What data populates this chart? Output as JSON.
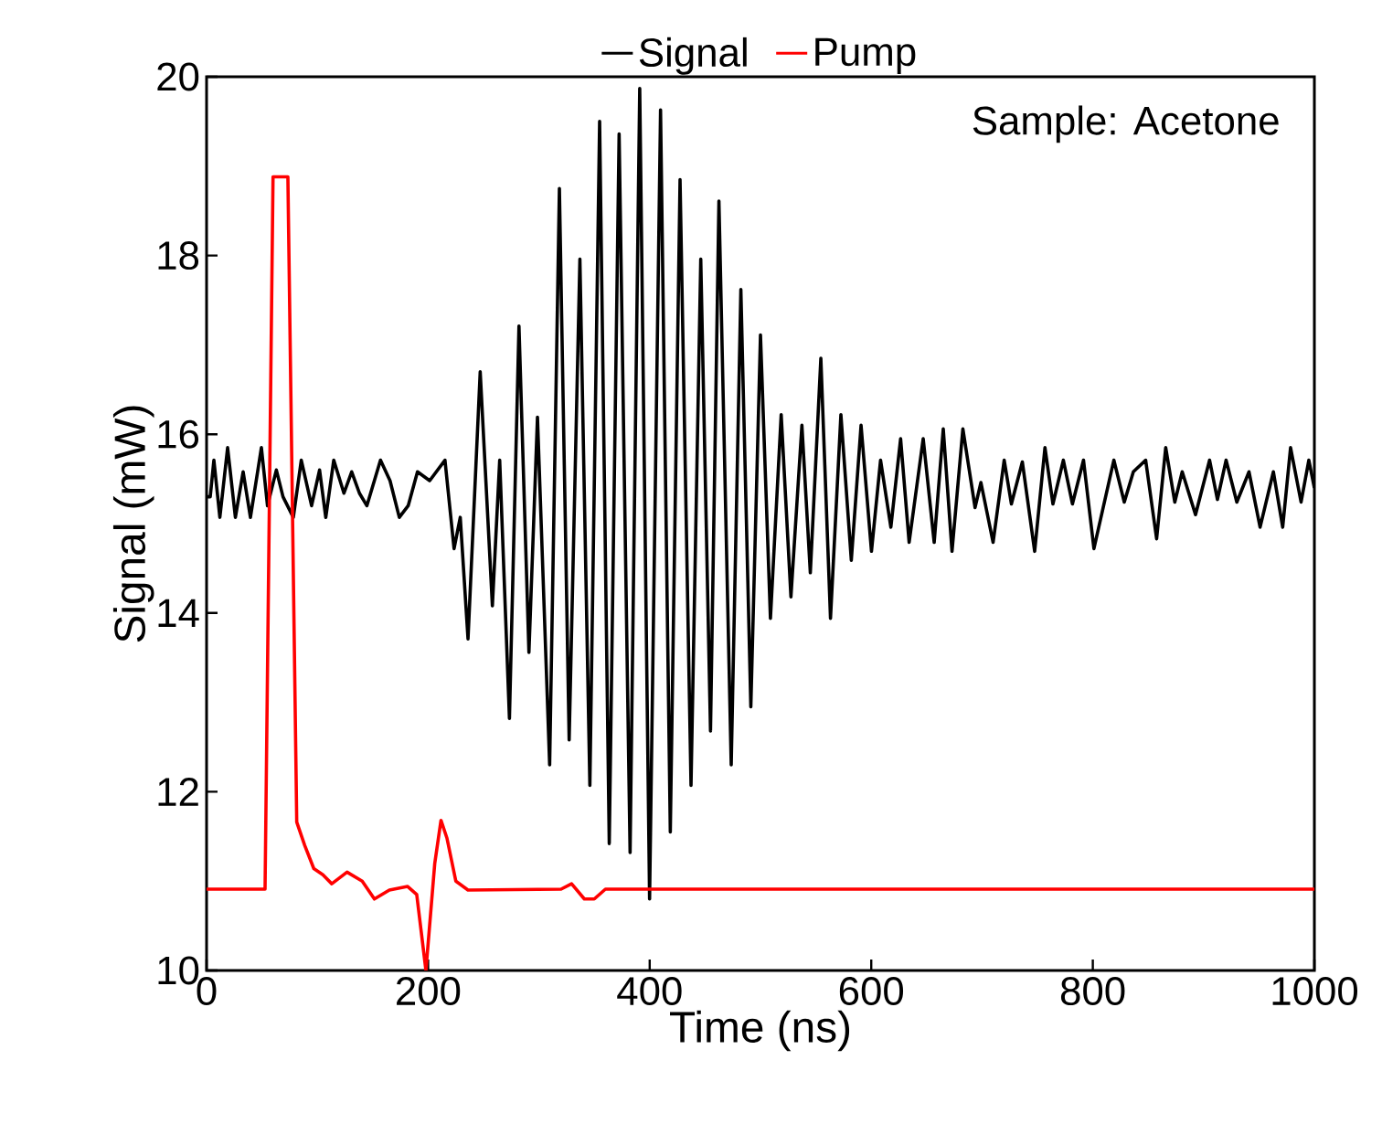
{
  "chart_data": {
    "type": "line",
    "xlabel": "Time (ns)",
    "ylabel": "Signal (mW)",
    "xlim": [
      0,
      1000
    ],
    "ylim": [
      10,
      20
    ],
    "xticks": [
      0,
      200,
      400,
      600,
      800,
      1000
    ],
    "yticks": [
      10,
      12,
      14,
      16,
      18,
      20
    ],
    "legend": "top",
    "grid": false,
    "marker": "none",
    "line_style": "solid",
    "annotations": [
      "Sample: Acetone"
    ],
    "series": [
      {
        "name": "Signal",
        "color": "#000000",
        "x": [
          0,
          3.3,
          6.6,
          12,
          19,
          26,
          33,
          39.6,
          49.5,
          55,
          63,
          69,
          78.3,
          85.5,
          94.8,
          102,
          107.6,
          114.8,
          124,
          131,
          138,
          144.7,
          157,
          165.6,
          174,
          182,
          190.4,
          201.4,
          215.2,
          223.4,
          229,
          236,
          247,
          258,
          264.6,
          273.4,
          282,
          291,
          298.7,
          309.7,
          318.5,
          327.3,
          337,
          346,
          354.8,
          363.5,
          372.4,
          382.3,
          391,
          399.9,
          409.8,
          418.6,
          427.4,
          437.3,
          446.1,
          454.9,
          462.5,
          473.6,
          482.3,
          491.3,
          500,
          509,
          518.7,
          527.5,
          537.4,
          545,
          554.5,
          563.2,
          572.6,
          582,
          590.8,
          600.2,
          608.4,
          617.7,
          626.5,
          634.2,
          646.9,
          656.8,
          665,
          672.9,
          682.7,
          693.7,
          699,
          710,
          720,
          726.5,
          736.4,
          747.5,
          756.8,
          764,
          773.4,
          781.6,
          791.6,
          801,
          819,
          828.4,
          836.6,
          847.7,
          857.6,
          865.8,
          874,
          880.7,
          892.7,
          905.4,
          912.5,
          920.3,
          930,
          941,
          951,
          963,
          971.4,
          978.5,
          988,
          995,
          1000
        ],
        "values": [
          15.3,
          15.3,
          15.71,
          15.07,
          15.85,
          15.07,
          15.58,
          15.07,
          15.85,
          15.2,
          15.6,
          15.3,
          15.07,
          15.71,
          15.2,
          15.6,
          15.07,
          15.71,
          15.34,
          15.58,
          15.34,
          15.2,
          15.71,
          15.48,
          15.07,
          15.2,
          15.58,
          15.48,
          15.71,
          14.72,
          15.07,
          13.71,
          16.7,
          14.08,
          15.71,
          12.82,
          17.21,
          13.56,
          16.19,
          12.3,
          18.75,
          12.58,
          17.96,
          12.07,
          19.5,
          11.42,
          19.36,
          11.32,
          19.87,
          10.8,
          19.63,
          11.55,
          18.85,
          12.07,
          17.96,
          12.68,
          18.61,
          12.3,
          17.62,
          12.95,
          17.11,
          13.94,
          16.22,
          14.18,
          16.1,
          14.45,
          16.85,
          13.94,
          16.22,
          14.59,
          16.1,
          14.69,
          15.71,
          14.96,
          15.95,
          14.79,
          15.95,
          14.79,
          16.06,
          14.69,
          16.06,
          15.18,
          15.46,
          14.79,
          15.71,
          15.22,
          15.69,
          14.69,
          15.85,
          15.22,
          15.71,
          15.22,
          15.71,
          14.72,
          15.71,
          15.24,
          15.58,
          15.71,
          14.83,
          15.85,
          15.24,
          15.58,
          15.1,
          15.71,
          15.27,
          15.71,
          15.24,
          15.58,
          14.96,
          15.58,
          14.96,
          15.85,
          15.24,
          15.71,
          15.4
        ]
      },
      {
        "name": "Pump",
        "color": "#ff0000",
        "x": [
          0,
          52.8,
          60,
          63.6,
          73.4,
          81.4,
          88.6,
          96.8,
          105,
          113,
          126.8,
          140.5,
          151.5,
          165,
          181.5,
          189.7,
          198,
          206,
          211.6,
          217,
          225,
          236,
          320,
          329.5,
          341,
          350,
          360,
          1000
        ],
        "values": [
          10.91,
          10.91,
          18.88,
          18.88,
          18.88,
          11.66,
          11.4,
          11.14,
          11.07,
          10.97,
          11.1,
          11.0,
          10.8,
          10.9,
          10.94,
          10.85,
          10.0,
          11.2,
          11.68,
          11.48,
          11.0,
          10.9,
          10.91,
          10.97,
          10.8,
          10.8,
          10.91,
          10.91
        ]
      }
    ]
  }
}
